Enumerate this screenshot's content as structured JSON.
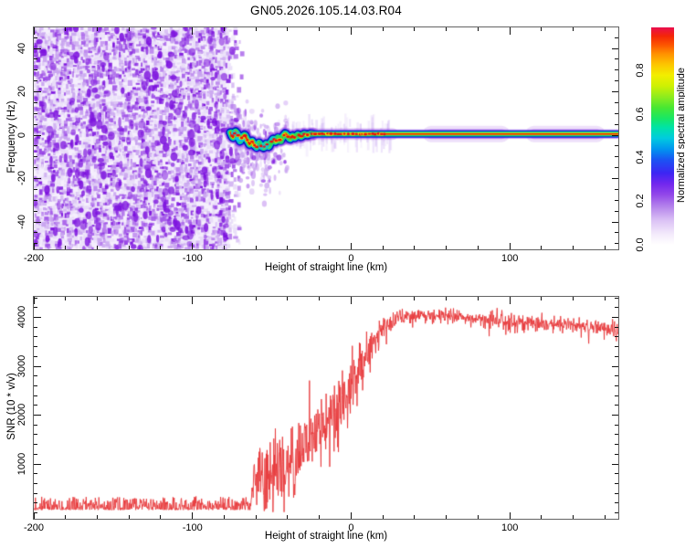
{
  "title": "GN05.2026.105.14.03.R04",
  "colors": {
    "curve_red": "#e8393b",
    "noise_purple": "#9a4ae0",
    "frame_gray": "#636363",
    "tick_black": "#111111",
    "background": "#ffffff"
  },
  "chart_data": [
    {
      "id": "spectrogram",
      "type": "heatmap",
      "title": "GN05.2026.105.14.03.R04",
      "xlabel": "Height of straight line (km)",
      "ylabel": "Frequency (Hz)",
      "xlim": [
        -200,
        168.4
      ],
      "ylim": [
        -52.6,
        49.7
      ],
      "x_major_ticks": [
        -200,
        -100,
        0,
        100
      ],
      "x_tick_labels": [
        "-200",
        "-100",
        "0",
        "100"
      ],
      "x_minor_step": 20,
      "y_major_ticks": [
        -40,
        -20,
        0,
        20,
        40
      ],
      "y_tick_labels": [
        "-40",
        "-20",
        "0",
        "20",
        "40"
      ],
      "y_minor_step": 5,
      "grid": false,
      "colorbar": {
        "label": "Normalized spectral amplitude",
        "tick_labels": [
          "0.0",
          "0.2",
          "0.4",
          "0.6",
          "0.8"
        ],
        "tick_values": [
          0,
          0.2,
          0.4,
          0.6,
          0.8
        ],
        "range": [
          0,
          1
        ],
        "gradient_stops": [
          [
            0.0,
            "#ffffff"
          ],
          [
            0.05,
            "#f3eafb"
          ],
          [
            0.11,
            "#dcc3f5"
          ],
          [
            0.17,
            "#b889ec"
          ],
          [
            0.23,
            "#9348e9"
          ],
          [
            0.28,
            "#7227ee"
          ],
          [
            0.33,
            "#3d25f3"
          ],
          [
            0.39,
            "#1b53f3"
          ],
          [
            0.44,
            "#0095ef"
          ],
          [
            0.49,
            "#00cbdf"
          ],
          [
            0.54,
            "#00e3a6"
          ],
          [
            0.58,
            "#17e766"
          ],
          [
            0.63,
            "#47e733"
          ],
          [
            0.68,
            "#8dec1e"
          ],
          [
            0.73,
            "#cdf003"
          ],
          [
            0.78,
            "#f2ee00"
          ],
          [
            0.83,
            "#fdc500"
          ],
          [
            0.88,
            "#ff8f00"
          ],
          [
            0.92,
            "#fc5400"
          ],
          [
            0.96,
            "#f42607"
          ],
          [
            1.0,
            "#e90e4e"
          ]
        ]
      },
      "features": {
        "noise_region": {
          "x_start": -200,
          "x_end": -72,
          "palette": [
            "#e8dcf8",
            "#c9a4f0",
            "#a257e8",
            "#7d13de"
          ]
        },
        "signal_trace": {
          "description": "carrier line near 0 Hz; wavy between -76 and -26 km, straight at +0.6 Hz beyond",
          "wavy_path": [
            [
              -76,
              1.2
            ],
            [
              -74.5,
              -1.2
            ],
            [
              -73,
              1.8
            ],
            [
              -71.5,
              0.4
            ],
            [
              -70,
              -2.6
            ],
            [
              -68.5,
              -0.8
            ],
            [
              -67,
              0.2
            ],
            [
              -65.5,
              -2.2
            ],
            [
              -64,
              -4.2
            ],
            [
              -62.5,
              -2.6
            ],
            [
              -61,
              -4.6
            ],
            [
              -59.5,
              -5.6
            ],
            [
              -58,
              -3.6
            ],
            [
              -56.5,
              -5.2
            ],
            [
              -55,
              -5.8
            ],
            [
              -53.5,
              -4.0
            ],
            [
              -52,
              -5.2
            ],
            [
              -50.5,
              -3.2
            ],
            [
              -49,
              -1.6
            ],
            [
              -47.5,
              -3.0
            ],
            [
              -46,
              -1.2
            ],
            [
              -44.5,
              -2.4
            ],
            [
              -43,
              -0.6
            ],
            [
              -41.5,
              0.8
            ],
            [
              -40,
              -0.4
            ],
            [
              -38.5,
              -1.8
            ],
            [
              -37,
              -0.2
            ],
            [
              -35.5,
              -1.2
            ],
            [
              -33.5,
              0.3
            ],
            [
              -31.5,
              -0.7
            ],
            [
              -29.5,
              0.5
            ],
            [
              -27.5,
              0.1
            ],
            [
              -25.5,
              0.6
            ]
          ],
          "straight_freq": 0.6,
          "bead_range": [
            -75,
            21
          ],
          "halo_regions": [
            [
              50,
              95
            ],
            [
              115,
              155
            ]
          ],
          "band_layers": [
            [
              "rgba(150,60,225,0.55)",
              10
            ],
            [
              "#1818e8",
              8
            ],
            [
              "#000878",
              6.5
            ],
            [
              "#00c4f4",
              5.6
            ],
            [
              "#22dd50",
              4.2
            ],
            [
              "#e2f000",
              2.6
            ],
            [
              "#ee1400",
              1.5
            ]
          ]
        }
      }
    },
    {
      "id": "snr",
      "type": "line",
      "xlabel": "Height of straight line (km)",
      "ylabel": "SNR (10 * v/v)",
      "xlim": [
        -200,
        168.4
      ],
      "ylim": [
        -120,
        4420
      ],
      "x_major_ticks": [
        -200,
        -100,
        0,
        100
      ],
      "x_tick_labels": [
        "-200",
        "-100",
        "0",
        "100"
      ],
      "x_minor_step": 20,
      "y_major_ticks": [
        1000,
        2000,
        3000,
        4000
      ],
      "y_tick_labels": [
        "1000",
        "2000",
        "3000",
        "4000"
      ],
      "y_minor_step": 200,
      "grid": false,
      "line_color": "#e8393b",
      "noise_floor": {
        "x_end": -63,
        "base": 60,
        "amp": 270,
        "spike_p": 0.006,
        "spike_amp": 200
      },
      "envelope": [
        [
          -200,
          230,
          170
        ],
        [
          -63,
          230,
          170
        ],
        [
          -61,
          520,
          950
        ],
        [
          -55,
          760,
          1300
        ],
        [
          -48,
          820,
          1500
        ],
        [
          -42,
          920,
          1250
        ],
        [
          -35,
          1120,
          1150
        ],
        [
          -28,
          1380,
          1100
        ],
        [
          -20,
          1680,
          1100
        ],
        [
          -12,
          1980,
          1100
        ],
        [
          -5,
          2320,
          1200
        ],
        [
          2,
          2760,
          1000
        ],
        [
          8,
          3120,
          820
        ],
        [
          15,
          3520,
          600
        ],
        [
          22,
          3820,
          380
        ],
        [
          30,
          3990,
          260
        ],
        [
          45,
          4050,
          240
        ],
        [
          60,
          4040,
          240
        ],
        [
          75,
          3990,
          230
        ],
        [
          90,
          3940,
          280
        ],
        [
          100,
          3900,
          320
        ],
        [
          115,
          3890,
          230
        ],
        [
          130,
          3860,
          220
        ],
        [
          145,
          3820,
          210
        ],
        [
          160,
          3760,
          230
        ],
        [
          168,
          3700,
          260
        ]
      ]
    }
  ]
}
